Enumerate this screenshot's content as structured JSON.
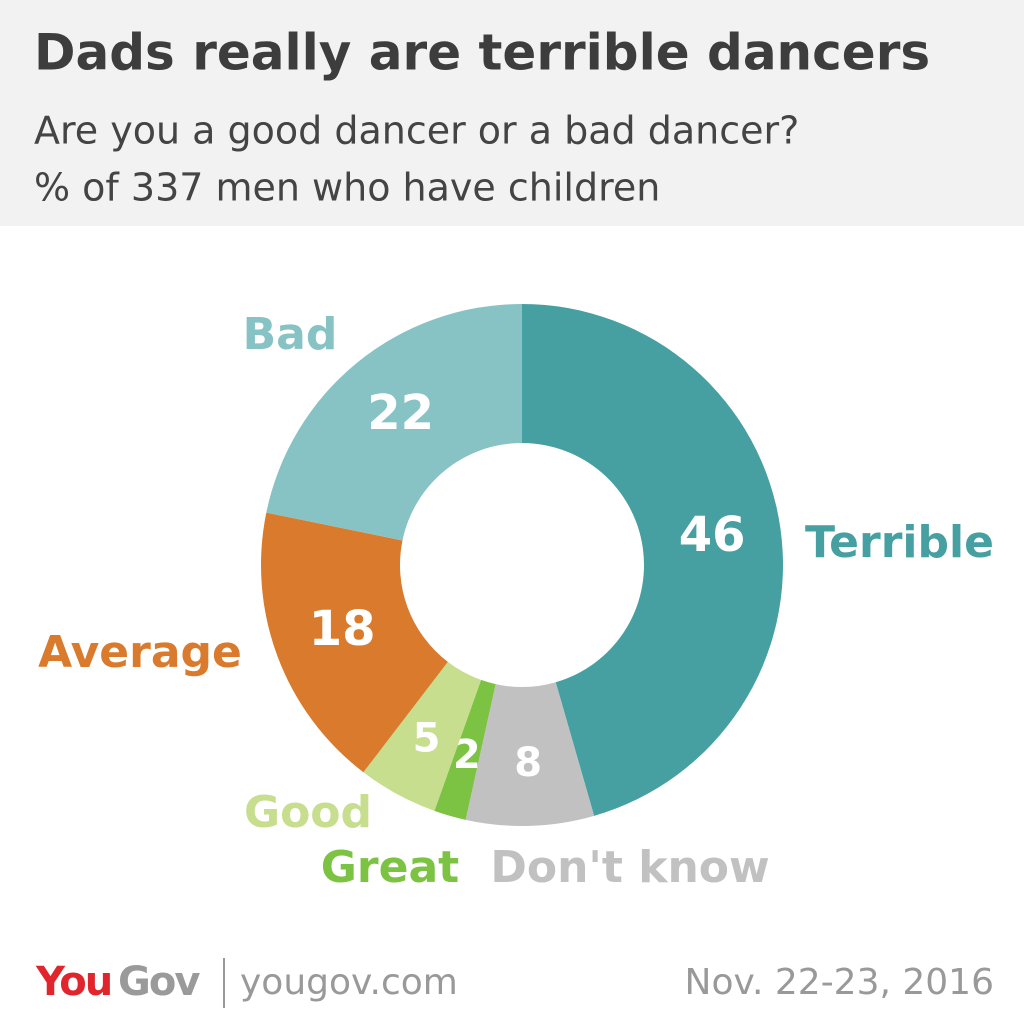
{
  "chart_data": {
    "type": "donut",
    "title": "Dads really are terrible dancers",
    "subtitle": [
      "Are you a good dancer or a bad dancer?",
      "% of 337 men who have children"
    ],
    "categories": [
      "Terrible",
      "Don't know",
      "Great",
      "Good",
      "Average",
      "Bad"
    ],
    "values": [
      46,
      8,
      2,
      5,
      18,
      22
    ],
    "colors": [
      "#46a0a1",
      "#c1c1c1",
      "#7cc243",
      "#c6de8d",
      "#d97a2c",
      "#87c3c4"
    ]
  },
  "footer": {
    "logo": {
      "left": "You",
      "right": "Gov"
    },
    "url": "yougov.com",
    "date": "Nov. 22-23, 2016"
  }
}
